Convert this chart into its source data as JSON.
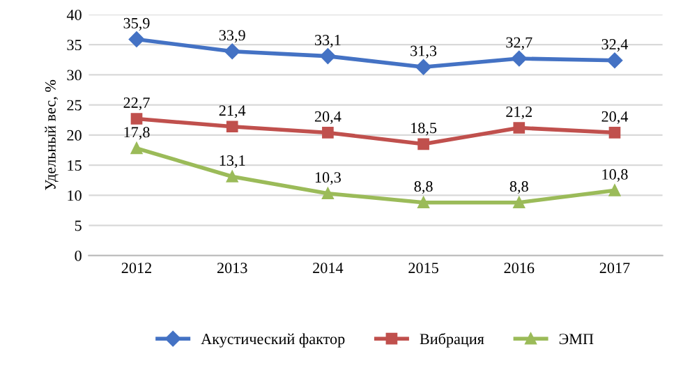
{
  "chart_data": {
    "type": "line",
    "ylabel": "Удельный вес, %",
    "categories": [
      "2012",
      "2013",
      "2014",
      "2015",
      "2016",
      "2017"
    ],
    "series": [
      {
        "name": "Акустический фактор",
        "color": "#4472c4",
        "marker": "diamond",
        "values": [
          35.9,
          33.9,
          33.1,
          31.3,
          32.7,
          32.4
        ],
        "value_labels": [
          "35,9",
          "33,9",
          "33,1",
          "31,3",
          "32,7",
          "32,4"
        ]
      },
      {
        "name": "Вибрация",
        "color": "#c0504d",
        "marker": "square",
        "values": [
          22.7,
          21.4,
          20.4,
          18.5,
          21.2,
          20.4
        ],
        "value_labels": [
          "22,7",
          "21,4",
          "20,4",
          "18,5",
          "21,2",
          "20,4"
        ]
      },
      {
        "name": "ЭМП",
        "color": "#9bbb59",
        "marker": "triangle",
        "values": [
          17.8,
          13.1,
          10.3,
          8.8,
          8.8,
          10.8
        ],
        "value_labels": [
          "17,8",
          "13,1",
          "10,3",
          "8,8",
          "8,8",
          "10,8"
        ]
      }
    ],
    "ylim": [
      0,
      40
    ],
    "yticks": [
      0,
      5,
      10,
      15,
      20,
      25,
      30,
      35,
      40
    ],
    "grid": "y",
    "legend": "bottom",
    "line_style": "solid"
  }
}
